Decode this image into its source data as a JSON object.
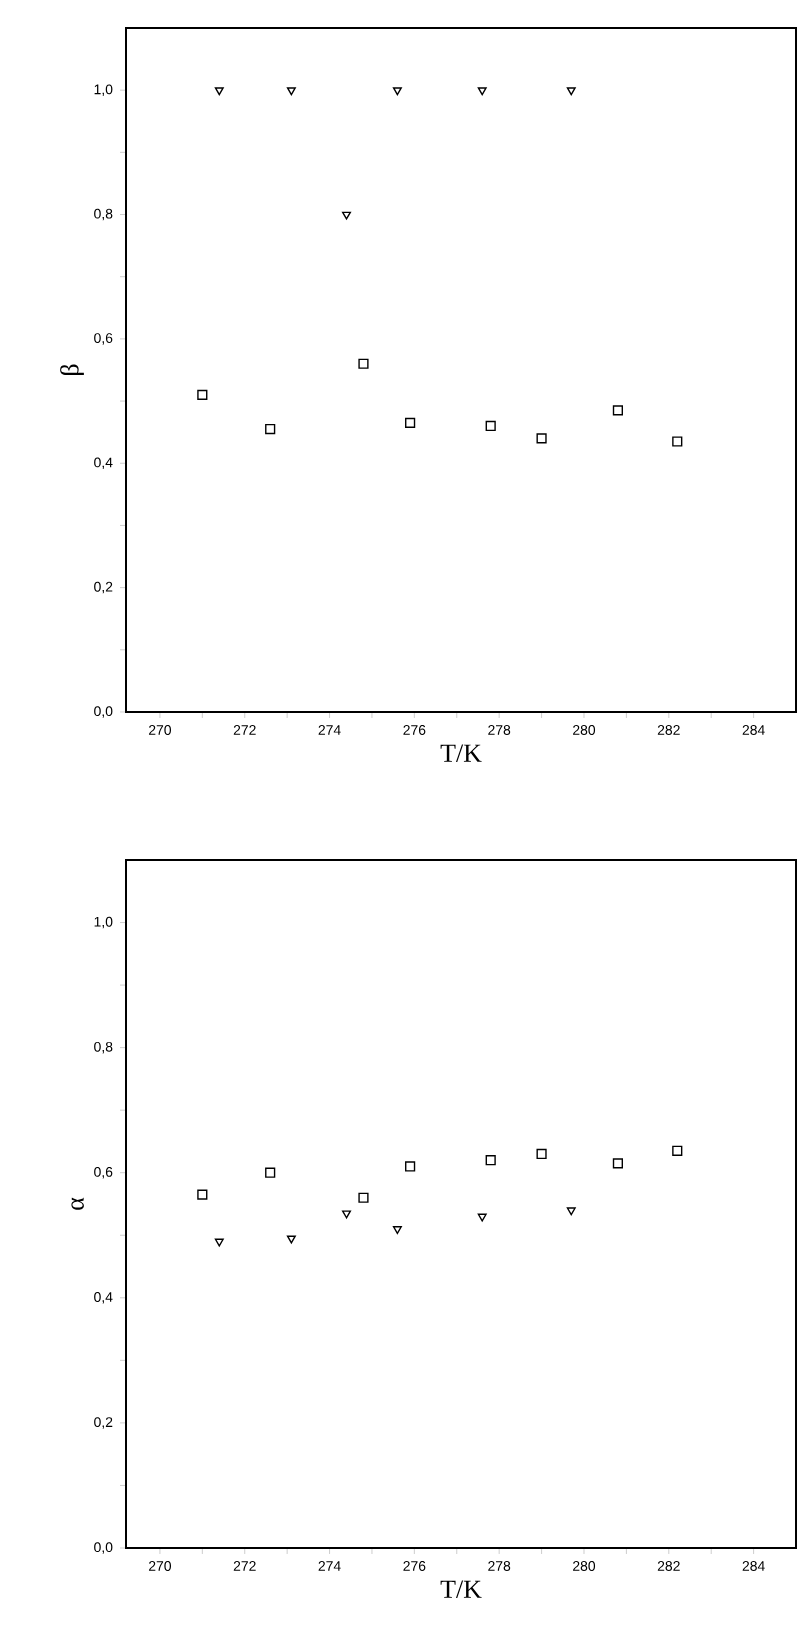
{
  "chart_data": [
    {
      "type": "scatter",
      "xlabel": "T/K",
      "ylabel": "β",
      "xlim": [
        269.2,
        285
      ],
      "ylim": [
        0,
        1.1
      ],
      "xticks": [
        270,
        {
          "value": 271,
          "label": null
        },
        272,
        {
          "value": 273,
          "label": null
        },
        274,
        {
          "value": 275,
          "label": null
        },
        276,
        {
          "value": 277,
          "label": null
        },
        278,
        {
          "value": 279,
          "label": null
        },
        280,
        {
          "value": 281,
          "label": null
        },
        282,
        {
          "value": 283,
          "label": null
        },
        284
      ],
      "yticks": [
        {
          "value": 0,
          "label": "0,0"
        },
        {
          "value": 0.1,
          "label": null
        },
        {
          "value": 0.2,
          "label": "0,2"
        },
        {
          "value": 0.3,
          "label": null
        },
        {
          "value": 0.4,
          "label": "0,4"
        },
        {
          "value": 0.5,
          "label": null
        },
        {
          "value": 0.6,
          "label": "0,6"
        },
        {
          "value": 0.7,
          "label": null
        },
        {
          "value": 0.8,
          "label": "0,8"
        },
        {
          "value": 0.9,
          "label": null
        },
        {
          "value": 1.0,
          "label": "1,0"
        }
      ],
      "grid": false,
      "series": [
        {
          "color": "#000000",
          "marker": "square",
          "x": [
            271.0,
            272.6,
            274.8,
            275.9,
            277.8,
            279.0,
            280.8,
            282.2
          ],
          "values": [
            0.51,
            0.455,
            0.56,
            0.465,
            0.46,
            0.44,
            0.485,
            0.435
          ]
        },
        {
          "color": "#000000",
          "marker": "triangle",
          "x": [
            271.4,
            273.1,
            274.4,
            275.6,
            277.6,
            279.7
          ],
          "values": [
            1.0,
            1.0,
            0.8,
            1.0,
            1.0,
            1.0
          ]
        }
      ]
    },
    {
      "type": "scatter",
      "xlabel": "T/K",
      "ylabel": "α",
      "xlim": [
        269.2,
        285
      ],
      "ylim": [
        0,
        1.1
      ],
      "xticks": [
        270,
        {
          "value": 271,
          "label": null
        },
        272,
        {
          "value": 273,
          "label": null
        },
        274,
        {
          "value": 275,
          "label": null
        },
        276,
        {
          "value": 277,
          "label": null
        },
        278,
        {
          "value": 279,
          "label": null
        },
        280,
        {
          "value": 281,
          "label": null
        },
        282,
        {
          "value": 283,
          "label": null
        },
        284
      ],
      "yticks": [
        {
          "value": 0,
          "label": "0,0"
        },
        {
          "value": 0.1,
          "label": null
        },
        {
          "value": 0.2,
          "label": "0,2"
        },
        {
          "value": 0.3,
          "label": null
        },
        {
          "value": 0.4,
          "label": "0,4"
        },
        {
          "value": 0.5,
          "label": null
        },
        {
          "value": 0.6,
          "label": "0,6"
        },
        {
          "value": 0.7,
          "label": null
        },
        {
          "value": 0.8,
          "label": "0,8"
        },
        {
          "value": 0.9,
          "label": null
        },
        {
          "value": 1.0,
          "label": "1,0"
        }
      ],
      "grid": false,
      "series": [
        {
          "color": "#000000",
          "marker": "square",
          "x": [
            271.0,
            272.6,
            274.8,
            275.9,
            277.8,
            279.0,
            280.8,
            282.2
          ],
          "values": [
            0.565,
            0.6,
            0.56,
            0.61,
            0.62,
            0.63,
            0.615,
            0.635
          ]
        },
        {
          "color": "#000000",
          "marker": "triangle",
          "x": [
            271.4,
            273.1,
            274.4,
            275.6,
            277.6,
            279.7
          ],
          "values": [
            0.49,
            0.495,
            0.535,
            0.51,
            0.53,
            0.54
          ]
        }
      ]
    }
  ]
}
